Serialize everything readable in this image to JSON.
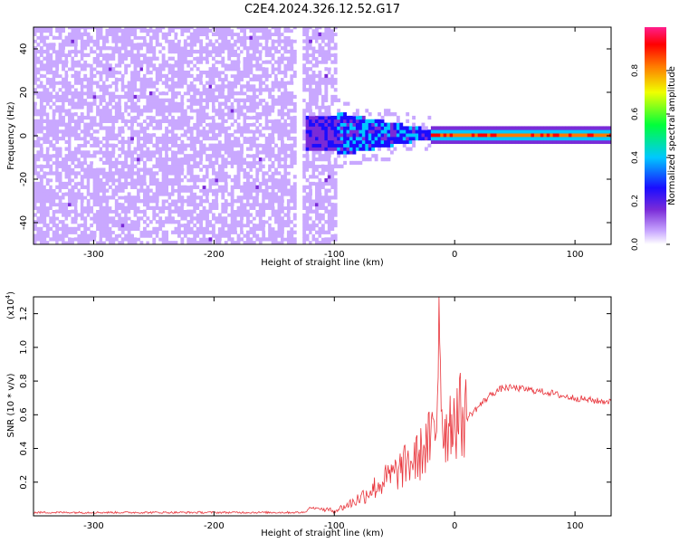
{
  "title": "C2E4.2024.326.12.52.G17",
  "colors": {
    "snr_line": "#e8333a",
    "background": "#ffffff"
  },
  "chart_data": [
    {
      "type": "heatmap",
      "title": "",
      "xlabel": "Height of straight line (km)",
      "ylabel": "Frequency (Hz)",
      "xlim": [
        -350,
        130
      ],
      "ylim": [
        -50,
        50
      ],
      "x_ticks": [
        "-300",
        "-200",
        "-100",
        "0",
        "100"
      ],
      "y_ticks": [
        "-40",
        "-20",
        "0",
        "20",
        "40"
      ],
      "grid": false,
      "colorbar": {
        "label": "Normalized spectral amplitude",
        "range": [
          0,
          1
        ],
        "ticks": [
          "0.0",
          "0.2",
          "0.4",
          "0.6",
          "0.8"
        ],
        "colormap": "rainbow (purple to red)"
      },
      "features": {
        "broadband_noise_region_x": [
          -350,
          -100
        ],
        "signal_onset_x": -130,
        "concentrated_line_region_x": [
          -20,
          130
        ],
        "line_center_frequency_hz": 0
      }
    },
    {
      "type": "line",
      "title": "",
      "xlabel": "Height of straight line (km)",
      "ylabel": "SNR (10 * v/v)",
      "y_multiplier": "(x10",
      "y_multiplier_exp": "4",
      "y_multiplier_close": ")",
      "xlim": [
        -350,
        130
      ],
      "ylim": [
        0,
        1.3
      ],
      "x_ticks": [
        "-300",
        "-200",
        "-100",
        "0",
        "100"
      ],
      "y_ticks": [
        "0.2",
        "0.4",
        "0.6",
        "0.8",
        "1.0",
        "1.2"
      ],
      "grid": false,
      "series": [
        {
          "x": [
            -350,
            -300,
            -250,
            -200,
            -150,
            -125,
            -120,
            -100,
            -90,
            -80,
            -70,
            -60,
            -50,
            -40,
            -30,
            -25,
            -20,
            -15,
            -13,
            -10,
            -5,
            0,
            10,
            20,
            30,
            40,
            50,
            60,
            70,
            80,
            90,
            100,
            110,
            120,
            130
          ],
          "y": [
            0.02,
            0.02,
            0.02,
            0.02,
            0.02,
            0.02,
            0.05,
            0.03,
            0.06,
            0.1,
            0.15,
            0.2,
            0.25,
            0.3,
            0.35,
            0.4,
            0.45,
            0.5,
            1.3,
            0.5,
            0.55,
            0.6,
            0.58,
            0.65,
            0.72,
            0.76,
            0.76,
            0.75,
            0.74,
            0.73,
            0.71,
            0.7,
            0.69,
            0.68,
            0.68
          ]
        }
      ]
    }
  ]
}
